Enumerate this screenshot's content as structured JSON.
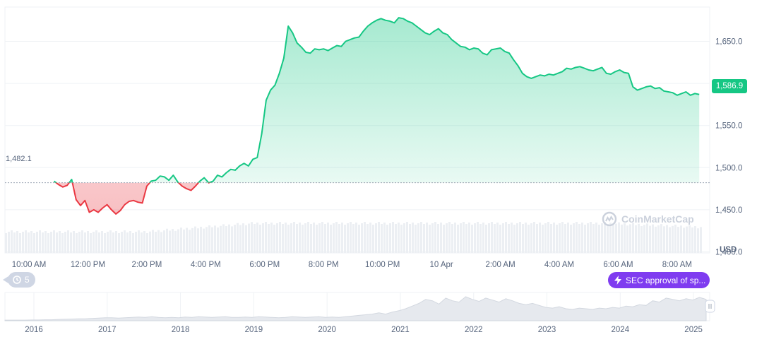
{
  "chart_data": {
    "type": "area",
    "currency_label": "USD",
    "baseline_value": 1482.1,
    "baseline_label": "1,482.1",
    "current_value": 1586.9,
    "current_label": "1,586.9",
    "ylim": [
      1380,
      1690
    ],
    "y_ticks": [
      {
        "value": 1400,
        "label": "1,400.0"
      },
      {
        "value": 1450,
        "label": "1,450.0"
      },
      {
        "value": 1500,
        "label": "1,500.0"
      },
      {
        "value": 1550,
        "label": "1,550.0"
      },
      {
        "value": 1600,
        "label": "1,600.0"
      },
      {
        "value": 1650,
        "label": "1,650.0"
      }
    ],
    "x_range": [
      9.75,
      33.9
    ],
    "x_ticks": [
      {
        "value": 10,
        "label": "10:00 AM"
      },
      {
        "value": 12,
        "label": "12:00 PM"
      },
      {
        "value": 14,
        "label": "2:00 PM"
      },
      {
        "value": 16,
        "label": "4:00 PM"
      },
      {
        "value": 18,
        "label": "6:00 PM"
      },
      {
        "value": 20,
        "label": "8:00 PM"
      },
      {
        "value": 22,
        "label": "10:00 PM"
      },
      {
        "value": 24,
        "label": "10 Apr"
      },
      {
        "value": 26,
        "label": "2:00 AM"
      },
      {
        "value": 28,
        "label": "4:00 AM"
      },
      {
        "value": 30,
        "label": "6:00 AM"
      },
      {
        "value": 32,
        "label": "8:00 AM"
      }
    ],
    "series": [
      {
        "values": [
          [
            10.85,
            1484
          ],
          [
            11.0,
            1480
          ],
          [
            11.15,
            1477
          ],
          [
            11.3,
            1479
          ],
          [
            11.45,
            1486
          ],
          [
            11.6,
            1462
          ],
          [
            11.75,
            1455
          ],
          [
            11.9,
            1461
          ],
          [
            12.05,
            1447
          ],
          [
            12.2,
            1450
          ],
          [
            12.35,
            1447
          ],
          [
            12.5,
            1452
          ],
          [
            12.65,
            1456
          ],
          [
            12.8,
            1450
          ],
          [
            12.95,
            1445
          ],
          [
            13.1,
            1449
          ],
          [
            13.25,
            1456
          ],
          [
            13.4,
            1460
          ],
          [
            13.55,
            1461
          ],
          [
            13.7,
            1459
          ],
          [
            13.85,
            1458
          ],
          [
            14.0,
            1478
          ],
          [
            14.15,
            1484
          ],
          [
            14.3,
            1485
          ],
          [
            14.45,
            1490
          ],
          [
            14.6,
            1489
          ],
          [
            14.75,
            1485
          ],
          [
            14.9,
            1491
          ],
          [
            15.05,
            1483
          ],
          [
            15.2,
            1478
          ],
          [
            15.35,
            1475
          ],
          [
            15.5,
            1473
          ],
          [
            15.65,
            1478
          ],
          [
            15.8,
            1484
          ],
          [
            15.95,
            1488
          ],
          [
            16.1,
            1482
          ],
          [
            16.25,
            1484
          ],
          [
            16.4,
            1491
          ],
          [
            16.55,
            1489
          ],
          [
            16.7,
            1494
          ],
          [
            16.85,
            1498
          ],
          [
            17.0,
            1497
          ],
          [
            17.15,
            1502
          ],
          [
            17.3,
            1505
          ],
          [
            17.45,
            1502
          ],
          [
            17.6,
            1510
          ],
          [
            17.75,
            1512
          ],
          [
            17.9,
            1540
          ],
          [
            18.05,
            1580
          ],
          [
            18.2,
            1592
          ],
          [
            18.35,
            1598
          ],
          [
            18.5,
            1612
          ],
          [
            18.65,
            1630
          ],
          [
            18.8,
            1668
          ],
          [
            18.95,
            1660
          ],
          [
            19.1,
            1648
          ],
          [
            19.25,
            1643
          ],
          [
            19.4,
            1637
          ],
          [
            19.55,
            1636
          ],
          [
            19.7,
            1641
          ],
          [
            19.85,
            1640
          ],
          [
            20.0,
            1641
          ],
          [
            20.15,
            1639
          ],
          [
            20.3,
            1642
          ],
          [
            20.45,
            1645
          ],
          [
            20.6,
            1644
          ],
          [
            20.75,
            1650
          ],
          [
            20.9,
            1652
          ],
          [
            21.05,
            1654
          ],
          [
            21.2,
            1655
          ],
          [
            21.35,
            1662
          ],
          [
            21.5,
            1668
          ],
          [
            21.65,
            1672
          ],
          [
            21.8,
            1675
          ],
          [
            21.95,
            1677
          ],
          [
            22.1,
            1675
          ],
          [
            22.25,
            1674
          ],
          [
            22.4,
            1672
          ],
          [
            22.55,
            1678
          ],
          [
            22.7,
            1677
          ],
          [
            22.85,
            1674
          ],
          [
            23.0,
            1672
          ],
          [
            23.15,
            1668
          ],
          [
            23.3,
            1664
          ],
          [
            23.45,
            1660
          ],
          [
            23.6,
            1658
          ],
          [
            23.75,
            1662
          ],
          [
            23.9,
            1665
          ],
          [
            24.05,
            1660
          ],
          [
            24.2,
            1658
          ],
          [
            24.35,
            1652
          ],
          [
            24.5,
            1648
          ],
          [
            24.65,
            1644
          ],
          [
            24.8,
            1643
          ],
          [
            24.95,
            1640
          ],
          [
            25.1,
            1642
          ],
          [
            25.25,
            1641
          ],
          [
            25.4,
            1636
          ],
          [
            25.55,
            1634
          ],
          [
            25.7,
            1640
          ],
          [
            25.85,
            1641
          ],
          [
            26.0,
            1642
          ],
          [
            26.15,
            1638
          ],
          [
            26.3,
            1636
          ],
          [
            26.45,
            1628
          ],
          [
            26.6,
            1621
          ],
          [
            26.75,
            1612
          ],
          [
            26.9,
            1608
          ],
          [
            27.05,
            1606
          ],
          [
            27.2,
            1608
          ],
          [
            27.35,
            1610
          ],
          [
            27.5,
            1609
          ],
          [
            27.65,
            1611
          ],
          [
            27.8,
            1610
          ],
          [
            27.95,
            1612
          ],
          [
            28.1,
            1614
          ],
          [
            28.25,
            1618
          ],
          [
            28.4,
            1617
          ],
          [
            28.55,
            1619
          ],
          [
            28.7,
            1620
          ],
          [
            28.85,
            1618
          ],
          [
            29.0,
            1616
          ],
          [
            29.15,
            1615
          ],
          [
            29.3,
            1617
          ],
          [
            29.45,
            1619
          ],
          [
            29.6,
            1612
          ],
          [
            29.75,
            1611
          ],
          [
            29.9,
            1614
          ],
          [
            30.05,
            1616
          ],
          [
            30.2,
            1613
          ],
          [
            30.35,
            1612
          ],
          [
            30.5,
            1596
          ],
          [
            30.65,
            1592
          ],
          [
            30.8,
            1594
          ],
          [
            30.95,
            1596
          ],
          [
            31.1,
            1597
          ],
          [
            31.25,
            1594
          ],
          [
            31.4,
            1595
          ],
          [
            31.55,
            1591
          ],
          [
            31.7,
            1590
          ],
          [
            31.85,
            1589
          ],
          [
            32.0,
            1586
          ],
          [
            32.15,
            1588
          ],
          [
            32.3,
            1590
          ],
          [
            32.45,
            1586
          ],
          [
            32.6,
            1588
          ],
          [
            32.75,
            1586.9
          ]
        ]
      }
    ],
    "navigator": {
      "ticks": [
        "2016",
        "2017",
        "2018",
        "2019",
        "2020",
        "2021",
        "2022",
        "2023",
        "2024",
        "2025"
      ],
      "values": [
        0.1,
        0.1,
        0.1,
        0.1,
        0.12,
        0.12,
        0.15,
        0.15,
        0.2,
        0.22,
        0.25,
        0.3,
        0.3,
        0.35,
        0.4,
        0.45,
        0.45,
        0.4,
        0.45,
        0.5,
        0.55,
        0.5,
        0.6,
        0.5,
        0.45,
        0.5,
        0.45,
        0.55,
        0.5,
        0.6,
        0.55,
        0.5,
        0.55,
        0.6,
        0.5,
        0.5,
        0.55,
        0.5,
        0.6,
        0.55,
        0.5,
        0.45,
        0.5,
        0.6,
        0.55,
        0.5,
        0.55,
        0.6,
        0.5,
        0.55,
        0.5,
        0.6,
        0.7,
        0.8,
        0.9,
        1.0,
        1.2,
        1.0,
        1.3,
        1.5,
        1.8,
        2.2,
        2.6,
        3.2,
        3.0,
        2.5,
        3.4,
        3.0,
        2.8,
        3.6,
        3.2,
        2.9,
        3.4,
        3.1,
        2.8,
        3.3,
        3.0,
        2.6,
        2.4,
        2.6,
        2.3,
        2.0,
        1.9,
        2.1,
        1.8,
        1.7,
        1.9,
        1.8,
        1.7,
        1.9,
        1.8,
        2.0,
        1.9,
        2.2,
        2.1,
        2.4,
        2.3,
        3.0,
        2.8,
        3.4,
        3.2,
        3.0,
        3.3,
        3.1,
        3.5,
        3.2
      ]
    }
  },
  "history_badge": {
    "icon": "history-icon",
    "count": "5"
  },
  "event_badge": {
    "icon": "lightning-icon",
    "text": "SEC approval of sp..."
  },
  "watermark": {
    "text": "CoinMarketCap",
    "icon": "coinmarketcap-logo-icon"
  },
  "colors": {
    "up": "#16c784",
    "down": "#ea3943",
    "event": "#7f3cf0"
  }
}
